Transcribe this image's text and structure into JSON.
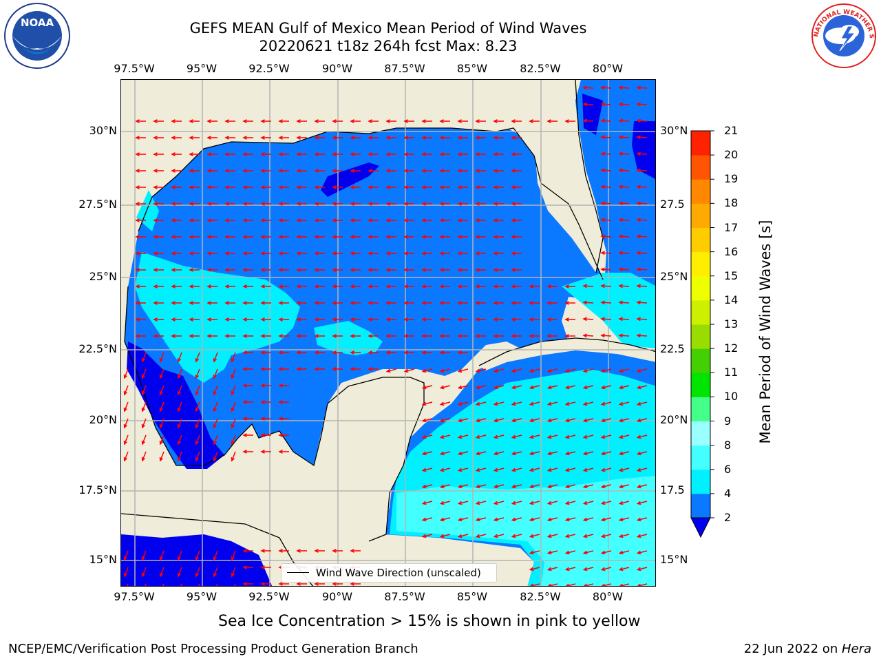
{
  "title": {
    "line1": "GEFS MEAN Gulf of Mexico Mean Period of Wind Waves",
    "line2": "20220621 t18z 264h fcst   Max: 8.23"
  },
  "axes": {
    "lon_labels": [
      "97.5°W",
      "95°W",
      "92.5°W",
      "90°W",
      "87.5°W",
      "85°W",
      "82.5°W",
      "80°W"
    ],
    "lat_labels_left": [
      "30°N",
      "27.5°N",
      "25°N",
      "22.5°N",
      "20°N",
      "17.5°N",
      "15°N"
    ],
    "lat_labels_right": [
      "30°N",
      "27.5",
      "25°N",
      "22.5",
      "20°N",
      "17.5",
      "15°N"
    ]
  },
  "legend": {
    "label": "Wind Wave Direction (unscaled)"
  },
  "colorbar": {
    "title": "Mean Period of Wind Waves [s]",
    "levels": [
      "2",
      "4",
      "6",
      "8",
      "9",
      "10",
      "11",
      "12",
      "13",
      "14",
      "15",
      "16",
      "17",
      "18",
      "19",
      "20",
      "21"
    ],
    "colors": [
      "#0000ee",
      "#0a78ff",
      "#00f0ff",
      "#44ffff",
      "#99ffff",
      "#44ff88",
      "#00e400",
      "#44d000",
      "#99dd00",
      "#ccf000",
      "#eeff00",
      "#ffee00",
      "#ffcc00",
      "#ffaa00",
      "#ff8800",
      "#ff5500",
      "#ff2200",
      "#ff0000"
    ]
  },
  "note": "Sea Ice Concentration > 15% is shown in pink to yellow",
  "footer": {
    "left": "NCEP/EMC/Verification Post Processing Product Generation Branch",
    "right_date": "22 Jun 2022 on ",
    "right_host": "Hera"
  },
  "logos": {
    "noaa_text": "NOAA",
    "nws_text": "NATIONAL WEATHER SERVICE"
  },
  "map_colors": {
    "land": "#efedd9",
    "water_2_4": "#0a78ff",
    "water_lt2": "#0000ee",
    "water_4_6": "#00f0ff",
    "water_6_8": "#44ffff",
    "arrow": "#ff0000",
    "grid": "#b4b4b4"
  }
}
